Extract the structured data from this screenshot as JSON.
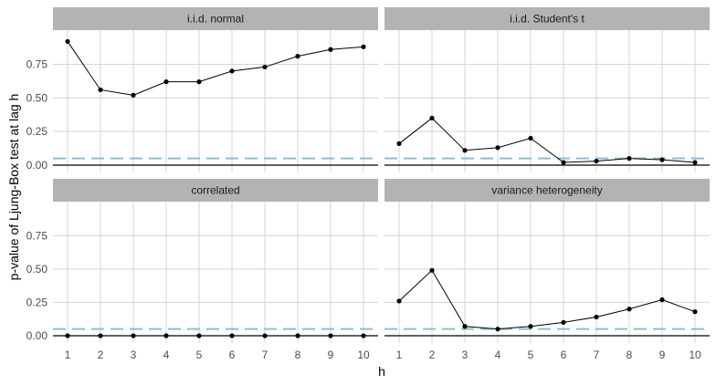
{
  "chart_data": {
    "type": "line",
    "xlabel": "h",
    "ylabel": "p-value of Ljung-Box test at lag h",
    "x": [
      1,
      2,
      3,
      4,
      5,
      6,
      7,
      8,
      9,
      10
    ],
    "xlim": [
      1,
      10
    ],
    "ylim": [
      0,
      0.95
    ],
    "y_ticks": [
      0,
      0.25,
      0.5,
      0.75
    ],
    "y_tick_labels": [
      "0.00",
      "0.25",
      "0.50",
      "0.75"
    ],
    "reference_line": {
      "y": 0.05,
      "style": "dashed",
      "color": "#8fbcd4"
    },
    "zero_line": {
      "y": 0,
      "color": "#000000"
    },
    "grid": true,
    "panels": [
      {
        "title": "i.i.d. normal",
        "values": [
          0.92,
          0.56,
          0.52,
          0.62,
          0.62,
          0.7,
          0.73,
          0.81,
          0.86,
          0.88
        ]
      },
      {
        "title": "i.i.d. Student's t",
        "values": [
          0.16,
          0.35,
          0.11,
          0.13,
          0.2,
          0.02,
          0.03,
          0.05,
          0.04,
          0.02
        ]
      },
      {
        "title": "correlated",
        "values": [
          0.0,
          0.0,
          0.0,
          0.0,
          0.0,
          0.0,
          0.0,
          0.0,
          0.0,
          0.0
        ]
      },
      {
        "title": "variance heterogeneity",
        "values": [
          0.26,
          0.49,
          0.07,
          0.05,
          0.07,
          0.1,
          0.14,
          0.2,
          0.27,
          0.18
        ]
      }
    ],
    "colors": {
      "strip": "#b3b3b3",
      "grid": "#d4d4d4",
      "line": "#000000",
      "reference": "#8fbcd4"
    }
  }
}
